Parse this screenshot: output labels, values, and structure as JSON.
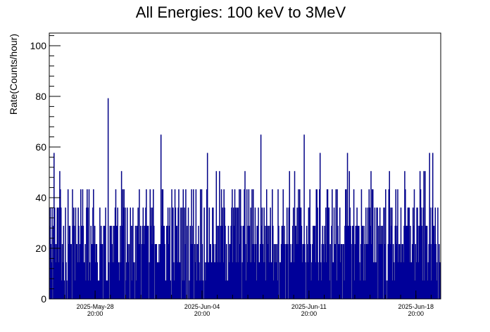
{
  "chart_data": {
    "type": "histogram",
    "title": "All Energies:  100 keV to 3MeV",
    "ylabel": "Rate(Counts/hour)",
    "xlabel": "",
    "ylim": [
      0,
      105
    ],
    "yticks": [
      0,
      20,
      40,
      60,
      80,
      100
    ],
    "x_axis": {
      "type": "time",
      "start": "2025-05-25 20:00",
      "end": "2025-06-20 11:00",
      "bin_width_hours": 1
    },
    "xticks": [
      {
        "at": "2025-05-28 20:00",
        "label_date": "2025-May-28",
        "label_time": "20:00"
      },
      {
        "at": "2025-06-04 20:00",
        "label_date": "2025-Jun-04",
        "label_time": "20:00"
      },
      {
        "at": "2025-06-11 20:00",
        "label_date": "2025-Jun-11",
        "label_time": "20:00"
      },
      {
        "at": "2025-06-18 20:00",
        "label_date": "2025-Jun-18",
        "label_time": "20:00"
      }
    ],
    "count_quantum": 7.2,
    "series": [
      {
        "color": "#000080",
        "fill_color": "#000099",
        "summary": {
          "typical_range": [
            0,
            43.2
          ],
          "peaks": [
            {
              "at": "2025-05-29 16:00",
              "value": 79.2
            },
            {
              "at": "2025-06-02 03:00",
              "value": 64.8
            },
            {
              "at": "2025-06-08 16:00",
              "value": 64.8
            },
            {
              "at": "2025-06-11 12:00",
              "value": 64.8
            }
          ]
        }
      }
    ],
    "grid": false,
    "legend": "none"
  }
}
